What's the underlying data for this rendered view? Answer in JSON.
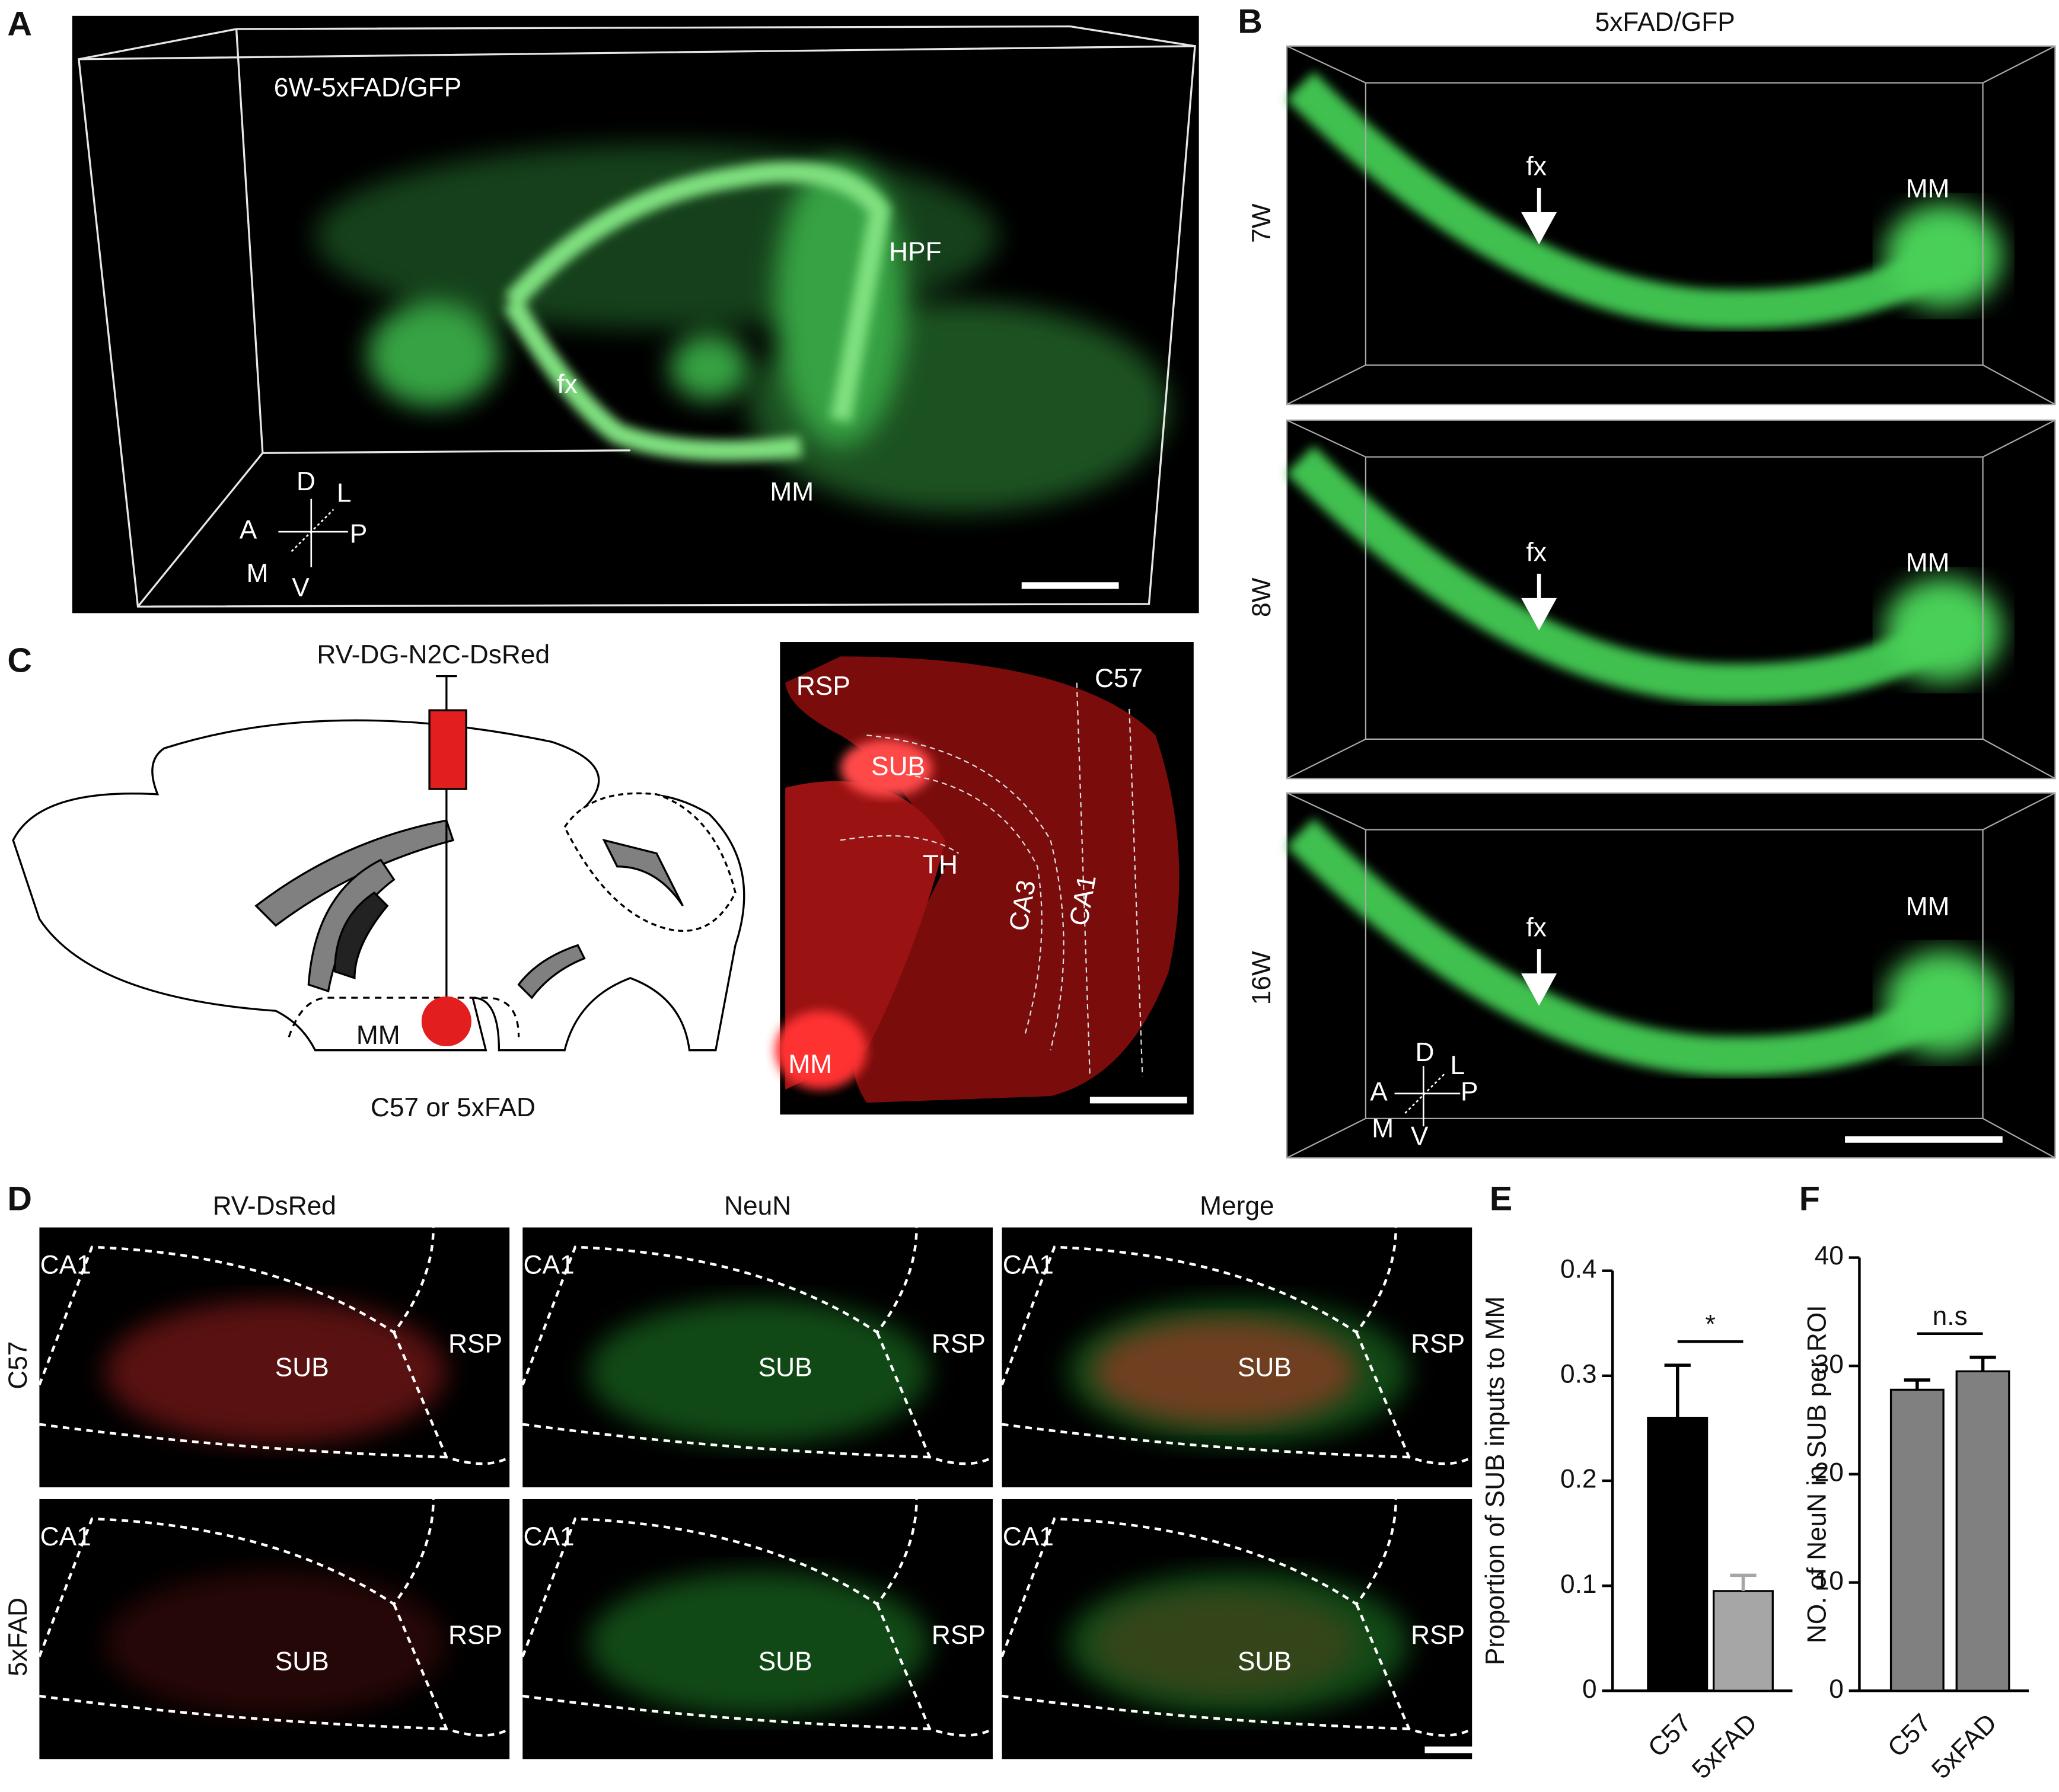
{
  "panels": {
    "a": {
      "label": "A",
      "title": "6W-5xFAD/GFP",
      "structures": [
        "HPF",
        "fx",
        "MM"
      ],
      "axes": [
        "D",
        "L",
        "A",
        "P",
        "M",
        "V"
      ]
    },
    "b": {
      "label": "B",
      "title": "5xFAD/GFP",
      "rows": [
        {
          "name": "7W",
          "labels": [
            "fx",
            "MM"
          ]
        },
        {
          "name": "8W",
          "labels": [
            "fx",
            "MM"
          ]
        },
        {
          "name": "16W",
          "labels": [
            "fx",
            "MM"
          ]
        }
      ],
      "axes": [
        "D",
        "L",
        "A",
        "P",
        "M",
        "V"
      ]
    },
    "c": {
      "label": "C",
      "virus": "RV-DG-N2C-DsRed",
      "target": "MM",
      "strain": "C57 or 5xFAD",
      "section_labels": [
        "RSP",
        "SUB",
        "C57",
        "TH",
        "CA3",
        "CA1",
        "MM"
      ]
    },
    "d": {
      "label": "D",
      "columns": [
        "RV-DsRed",
        "NeuN",
        "Merge"
      ],
      "rows": [
        "C57",
        "5xFAD"
      ],
      "regions": [
        "CA1",
        "SUB",
        "RSP"
      ]
    }
  },
  "chart_data": [
    {
      "type": "bar",
      "label": "E",
      "ylabel": "Proportion of SUB inputs to MM",
      "categories": [
        "C57",
        "5xFAD"
      ],
      "values": [
        0.26,
        0.095
      ],
      "errors": [
        0.05,
        0.015
      ],
      "colors": [
        "#000000",
        "#a6a6a6"
      ],
      "ylim": [
        0,
        0.4
      ],
      "yticks": [
        0,
        0.1,
        0.2,
        0.3,
        0.4
      ],
      "annotation": "*"
    },
    {
      "type": "bar",
      "label": "F",
      "ylabel": "NO. of NeuN  in SUB per ROI",
      "categories": [
        "C57",
        "5xFAD"
      ],
      "values": [
        27.8,
        29.5
      ],
      "errors": [
        0.9,
        1.3
      ],
      "colors": [
        "#808080",
        "#808080"
      ],
      "ylim": [
        0,
        40
      ],
      "yticks": [
        0,
        10,
        20,
        30,
        40
      ],
      "annotation": "n.s"
    }
  ]
}
